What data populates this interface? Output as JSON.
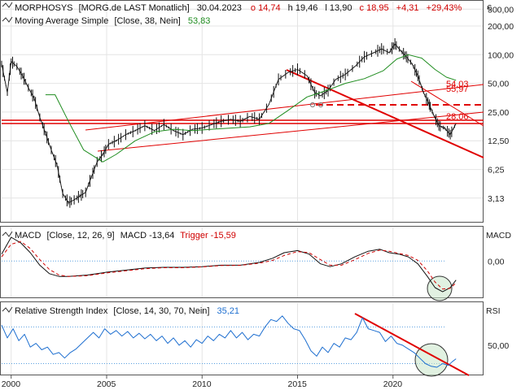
{
  "header": {
    "symbol": "MORPHOSYS",
    "source": "[MORG.de LAST Monatlich]",
    "date": "30.04.2023",
    "open_label": "o 14,74",
    "high_label": "h 19,46",
    "low_label": "l 13,90",
    "close_label": "c 18,95",
    "change_label": "+4,31",
    "change_pct_label": "+29,43%",
    "currency": "€"
  },
  "indicators": {
    "ma_label": "Moving Average Simple",
    "ma_params": "[Close, 38, Nein]",
    "ma_value": "53,83",
    "macd_label": "MACD",
    "macd_params": "[Close, 12, 26, 9]",
    "macd_value": "MACD -13,64",
    "macd_trigger": "Trigger -15,59",
    "macd_axis_title": "MACD",
    "rsi_label": "Relative Strength Index",
    "rsi_params": "[Close, 14, 30, 70, Nein]",
    "rsi_value": "35,21",
    "rsi_axis_title": "RSI"
  },
  "annotations": {
    "resistance_label_1": "55,97",
    "resistance_label_2": "54,03",
    "support_label": "28,06"
  },
  "chart_data": [
    {
      "type": "line",
      "panel": "price",
      "scale": "log",
      "yticks": [
        "300,00",
        "200,00",
        "100,00",
        "50,00",
        "25,00",
        "12,50",
        "6,25",
        "3,13"
      ],
      "ytick_values": [
        300,
        200,
        100,
        50,
        25,
        12.5,
        6.25,
        3.13
      ],
      "xticks": [
        "2000",
        "2005",
        "2010",
        "2015",
        "2020"
      ],
      "ylim": [
        1.8,
        360
      ],
      "series": [
        {
          "name": "MORPHOSYS",
          "points": [
            [
              1999.5,
              80
            ],
            [
              1999.8,
              40
            ],
            [
              2000.0,
              85
            ],
            [
              2000.3,
              75
            ],
            [
              2000.6,
              60
            ],
            [
              2000.9,
              45
            ],
            [
              2001.2,
              35
            ],
            [
              2001.5,
              22
            ],
            [
              2001.8,
              15
            ],
            [
              2002.1,
              10
            ],
            [
              2002.4,
              7
            ],
            [
              2002.7,
              3.5
            ],
            [
              2003.0,
              2.8
            ],
            [
              2003.3,
              3.0
            ],
            [
              2003.6,
              3.3
            ],
            [
              2003.9,
              3.6
            ],
            [
              2004.2,
              5.2
            ],
            [
              2004.5,
              7.5
            ],
            [
              2004.8,
              9.0
            ],
            [
              2005.1,
              11.5
            ],
            [
              2005.5,
              12.5
            ],
            [
              2006.0,
              14.5
            ],
            [
              2006.5,
              16.0
            ],
            [
              2007.0,
              18.0
            ],
            [
              2007.5,
              16.0
            ],
            [
              2008.0,
              18.5
            ],
            [
              2008.5,
              16.0
            ],
            [
              2009.0,
              14.5
            ],
            [
              2009.5,
              16.5
            ],
            [
              2010.0,
              17.0
            ],
            [
              2010.5,
              18.5
            ],
            [
              2011.0,
              20.0
            ],
            [
              2011.5,
              21.0
            ],
            [
              2012.0,
              20.0
            ],
            [
              2012.5,
              22.5
            ],
            [
              2013.0,
              21.0
            ],
            [
              2013.5,
              30.0
            ],
            [
              2014.0,
              55.0
            ],
            [
              2014.5,
              65.0
            ],
            [
              2015.0,
              70.0
            ],
            [
              2015.5,
              60.0
            ],
            [
              2015.9,
              40.0
            ],
            [
              2016.2,
              37.0
            ],
            [
              2016.6,
              42.0
            ],
            [
              2017.0,
              55.0
            ],
            [
              2017.5,
              62.0
            ],
            [
              2018.0,
              75.0
            ],
            [
              2018.5,
              95.0
            ],
            [
              2019.0,
              105.0
            ],
            [
              2019.4,
              115.0
            ],
            [
              2019.8,
              105.0
            ],
            [
              2020.1,
              130.0
            ],
            [
              2020.4,
              110.0
            ],
            [
              2020.7,
              95.0
            ],
            [
              2021.0,
              80.0
            ],
            [
              2021.3,
              60.0
            ],
            [
              2021.6,
              40.0
            ],
            [
              2021.9,
              30.0
            ],
            [
              2022.1,
              24.0
            ],
            [
              2022.4,
              18.0
            ],
            [
              2022.7,
              17.0
            ],
            [
              2023.0,
              14.5
            ],
            [
              2023.3,
              18.95
            ]
          ]
        },
        {
          "name": "Moving Average Simple",
          "points": [
            [
              2001.8,
              38
            ],
            [
              2002.3,
              38
            ],
            [
              2003.0,
              20
            ],
            [
              2003.8,
              10
            ],
            [
              2004.8,
              7.5
            ],
            [
              2005.5,
              9.0
            ],
            [
              2006.5,
              12.5
            ],
            [
              2007.5,
              15.5
            ],
            [
              2008.5,
              16.5
            ],
            [
              2009.5,
              16.0
            ],
            [
              2010.5,
              16.5
            ],
            [
              2011.5,
              17.0
            ],
            [
              2012.5,
              17.5
            ],
            [
              2013.5,
              19.0
            ],
            [
              2014.5,
              26.0
            ],
            [
              2015.5,
              36.0
            ],
            [
              2016.5,
              42.0
            ],
            [
              2017.5,
              50.0
            ],
            [
              2018.5,
              56.0
            ],
            [
              2019.5,
              68.0
            ],
            [
              2020.2,
              90.0
            ],
            [
              2020.8,
              100.0
            ],
            [
              2021.5,
              92.0
            ],
            [
              2022.2,
              70.0
            ],
            [
              2022.8,
              58.0
            ],
            [
              2023.3,
              53.83
            ]
          ]
        }
      ]
    },
    {
      "type": "line",
      "panel": "macd",
      "yticks": [
        "0,00"
      ],
      "ytick_values": [
        0
      ],
      "ylim": [
        -26,
        24
      ],
      "series": [
        {
          "name": "MACD",
          "points": [
            [
              1999.5,
              5
            ],
            [
              2000.0,
              17
            ],
            [
              2000.5,
              13
            ],
            [
              2001.0,
              6
            ],
            [
              2001.5,
              -3
            ],
            [
              2002.0,
              -9
            ],
            [
              2002.5,
              -11
            ],
            [
              2003.0,
              -11
            ],
            [
              2004.0,
              -10
            ],
            [
              2005.0,
              -8
            ],
            [
              2006.0,
              -6.5
            ],
            [
              2007.0,
              -5
            ],
            [
              2008.0,
              -4.5
            ],
            [
              2009.0,
              -4.5
            ],
            [
              2010.0,
              -4
            ],
            [
              2011.0,
              -3
            ],
            [
              2012.0,
              -3
            ],
            [
              2013.0,
              -1
            ],
            [
              2013.7,
              2
            ],
            [
              2014.3,
              6
            ],
            [
              2015.0,
              7.5
            ],
            [
              2015.6,
              5
            ],
            [
              2016.2,
              -2
            ],
            [
              2016.7,
              -4
            ],
            [
              2017.3,
              -2
            ],
            [
              2018.0,
              3
            ],
            [
              2018.7,
              7
            ],
            [
              2019.3,
              8.5
            ],
            [
              2019.8,
              6
            ],
            [
              2020.3,
              5
            ],
            [
              2020.8,
              3
            ],
            [
              2021.3,
              -2
            ],
            [
              2021.8,
              -11
            ],
            [
              2022.2,
              -19
            ],
            [
              2022.6,
              -22
            ],
            [
              2023.0,
              -19
            ],
            [
              2023.3,
              -13.64
            ]
          ]
        },
        {
          "name": "Trigger",
          "points": [
            [
              1999.5,
              3
            ],
            [
              2000.0,
              12
            ],
            [
              2000.5,
              14
            ],
            [
              2001.0,
              9
            ],
            [
              2001.5,
              1
            ],
            [
              2002.0,
              -6
            ],
            [
              2002.5,
              -10
            ],
            [
              2003.0,
              -11
            ],
            [
              2004.0,
              -10.5
            ],
            [
              2005.0,
              -8.5
            ],
            [
              2006.0,
              -7
            ],
            [
              2007.0,
              -5.5
            ],
            [
              2008.0,
              -4.8
            ],
            [
              2009.0,
              -4.8
            ],
            [
              2010.0,
              -4.2
            ],
            [
              2011.0,
              -3.2
            ],
            [
              2012.0,
              -3.1
            ],
            [
              2013.0,
              -1.5
            ],
            [
              2013.7,
              0.5
            ],
            [
              2014.3,
              4
            ],
            [
              2015.0,
              6.8
            ],
            [
              2015.6,
              6
            ],
            [
              2016.2,
              1
            ],
            [
              2016.7,
              -3
            ],
            [
              2017.3,
              -3
            ],
            [
              2018.0,
              1
            ],
            [
              2018.7,
              5.5
            ],
            [
              2019.3,
              7.8
            ],
            [
              2019.8,
              7
            ],
            [
              2020.3,
              5.5
            ],
            [
              2020.8,
              4
            ],
            [
              2021.3,
              0.5
            ],
            [
              2021.8,
              -7
            ],
            [
              2022.2,
              -15
            ],
            [
              2022.6,
              -20
            ],
            [
              2023.0,
              -19.5
            ],
            [
              2023.3,
              -15.59
            ]
          ]
        }
      ]
    },
    {
      "type": "line",
      "panel": "rsi",
      "yticks": [
        "50,00"
      ],
      "ytick_values": [
        50
      ],
      "ylim": [
        18,
        96
      ],
      "guide_levels": [
        30,
        70
      ],
      "series": [
        {
          "name": "Relative Strength Index",
          "points": [
            [
              1999.5,
              72
            ],
            [
              1999.8,
              58
            ],
            [
              2000.1,
              68
            ],
            [
              2000.4,
              55
            ],
            [
              2000.7,
              62
            ],
            [
              2001.0,
              48
            ],
            [
              2001.3,
              52
            ],
            [
              2001.6,
              45
            ],
            [
              2001.9,
              48
            ],
            [
              2002.2,
              40
            ],
            [
              2002.5,
              42
            ],
            [
              2002.8,
              36
            ],
            [
              2003.1,
              42
            ],
            [
              2003.4,
              46
            ],
            [
              2003.7,
              52
            ],
            [
              2004.0,
              58
            ],
            [
              2004.3,
              64
            ],
            [
              2004.6,
              58
            ],
            [
              2004.9,
              68
            ],
            [
              2005.2,
              62
            ],
            [
              2005.5,
              66
            ],
            [
              2005.8,
              60
            ],
            [
              2006.1,
              65
            ],
            [
              2006.4,
              58
            ],
            [
              2006.7,
              63
            ],
            [
              2007.0,
              57
            ],
            [
              2007.3,
              62
            ],
            [
              2007.6,
              55
            ],
            [
              2007.9,
              60
            ],
            [
              2008.2,
              52
            ],
            [
              2008.5,
              58
            ],
            [
              2008.8,
              50
            ],
            [
              2009.1,
              55
            ],
            [
              2009.4,
              48
            ],
            [
              2009.7,
              56
            ],
            [
              2010.0,
              52
            ],
            [
              2010.3,
              60
            ],
            [
              2010.6,
              55
            ],
            [
              2010.9,
              62
            ],
            [
              2011.2,
              58
            ],
            [
              2011.5,
              66
            ],
            [
              2011.8,
              58
            ],
            [
              2012.1,
              64
            ],
            [
              2012.4,
              56
            ],
            [
              2012.7,
              62
            ],
            [
              2013.0,
              60
            ],
            [
              2013.3,
              70
            ],
            [
              2013.6,
              78
            ],
            [
              2013.9,
              76
            ],
            [
              2014.2,
              82
            ],
            [
              2014.5,
              74
            ],
            [
              2014.8,
              68
            ],
            [
              2015.1,
              66
            ],
            [
              2015.4,
              56
            ],
            [
              2015.7,
              44
            ],
            [
              2016.0,
              38
            ],
            [
              2016.3,
              48
            ],
            [
              2016.6,
              42
            ],
            [
              2016.9,
              52
            ],
            [
              2017.2,
              48
            ],
            [
              2017.5,
              58
            ],
            [
              2017.8,
              56
            ],
            [
              2018.1,
              64
            ],
            [
              2018.4,
              80
            ],
            [
              2018.7,
              68
            ],
            [
              2019.0,
              66
            ],
            [
              2019.3,
              64
            ],
            [
              2019.6,
              54
            ],
            [
              2019.9,
              60
            ],
            [
              2020.2,
              52
            ],
            [
              2020.5,
              50
            ],
            [
              2020.8,
              46
            ],
            [
              2021.1,
              42
            ],
            [
              2021.4,
              36
            ],
            [
              2021.7,
              30
            ],
            [
              2022.0,
              27
            ],
            [
              2022.3,
              26
            ],
            [
              2022.6,
              30
            ],
            [
              2022.9,
              28
            ],
            [
              2023.1,
              32
            ],
            [
              2023.3,
              35.21
            ]
          ]
        }
      ]
    }
  ]
}
